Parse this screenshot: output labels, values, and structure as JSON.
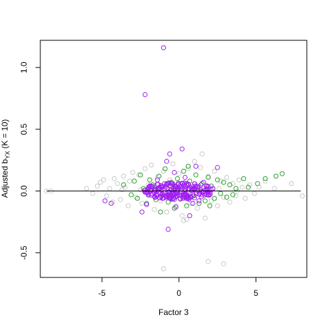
{
  "chart_data": {
    "type": "scatter",
    "title": "",
    "xlabel": "Factor 3",
    "ylabel": {
      "prefix": "Adjusted b",
      "subscript": "YX",
      "suffix": " (K = 10)"
    },
    "xlim": [
      -9.0,
      8.3
    ],
    "ylim": [
      -0.7,
      1.22
    ],
    "x_ticks": [
      -5,
      0,
      5
    ],
    "y_ticks": [
      -0.5,
      0.0,
      0.5,
      1.0
    ],
    "x_tick_labels": [
      "-5",
      "0",
      "5"
    ],
    "y_tick_labels": [
      "-0.5",
      "0.0",
      "0.5",
      "1.0"
    ],
    "reference_line": {
      "intercept": 0,
      "slope": 0,
      "color": "#000000"
    },
    "grid": false,
    "legend": "none",
    "series": [
      {
        "color": "#c8c8c8",
        "points": [
          [
            -8.6,
            0.0
          ],
          [
            -8.3,
            0.0
          ],
          [
            -6.0,
            0.02
          ],
          [
            -5.6,
            -0.02
          ],
          [
            -5.3,
            0.04
          ],
          [
            -5.1,
            0.07
          ],
          [
            -4.9,
            0.09
          ],
          [
            -4.7,
            -0.04
          ],
          [
            -4.5,
            0.02
          ],
          [
            -4.3,
            -0.09
          ],
          [
            -4.2,
            0.1
          ],
          [
            -4.0,
            0.06
          ],
          [
            -3.8,
            -0.07
          ],
          [
            -3.6,
            0.12
          ],
          [
            -3.5,
            0.03
          ],
          [
            -3.3,
            -0.12
          ],
          [
            -3.2,
            0.08
          ],
          [
            -3.0,
            0.15
          ],
          [
            -2.8,
            -0.05
          ],
          [
            -2.6,
            0.13
          ],
          [
            -2.4,
            -0.1
          ],
          [
            -2.2,
            0.18
          ],
          [
            -2.0,
            0.05
          ],
          [
            -1.8,
            0.21
          ],
          [
            -1.6,
            -0.15
          ],
          [
            -1.4,
            0.11
          ],
          [
            -1.2,
            -0.08
          ],
          [
            -1.0,
            0.16
          ],
          [
            -0.8,
            -0.17
          ],
          [
            -0.6,
            0.09
          ],
          [
            -0.4,
            0.22
          ],
          [
            -0.2,
            -0.12
          ],
          [
            0.0,
            0.14
          ],
          [
            0.2,
            -0.2
          ],
          [
            0.3,
            -0.24
          ],
          [
            0.5,
            -0.23
          ],
          [
            0.6,
            0.18
          ],
          [
            0.8,
            -0.1
          ],
          [
            1.0,
            0.24
          ],
          [
            1.2,
            -0.14
          ],
          [
            1.4,
            0.19
          ],
          [
            1.5,
            0.3
          ],
          [
            1.7,
            -0.22
          ],
          [
            1.9,
            0.12
          ],
          [
            2.1,
            -0.08
          ],
          [
            2.3,
            0.16
          ],
          [
            2.5,
            -0.12
          ],
          [
            2.7,
            0.08
          ],
          [
            2.9,
            -0.05
          ],
          [
            3.1,
            0.11
          ],
          [
            3.3,
            -0.09
          ],
          [
            3.5,
            0.06
          ],
          [
            3.7,
            -0.04
          ],
          [
            3.9,
            0.09
          ],
          [
            4.1,
            0.03
          ],
          [
            4.3,
            -0.06
          ],
          [
            4.6,
            0.05
          ],
          [
            4.9,
            -0.02
          ],
          [
            5.2,
            0.03
          ],
          [
            5.6,
            0.08
          ],
          [
            6.2,
            0.02
          ],
          [
            7.3,
            0.06
          ],
          [
            8.0,
            -0.04
          ],
          [
            1.9,
            -0.57
          ],
          [
            2.9,
            -0.59
          ],
          [
            -1.0,
            -0.63
          ],
          [
            -0.5,
            0.04
          ],
          [
            -1.5,
            0.01
          ],
          [
            0.9,
            0.03
          ],
          [
            1.6,
            0.02
          ],
          [
            -2.5,
            0.01
          ],
          [
            2.6,
            0.02
          ],
          [
            -3.7,
            0.01
          ],
          [
            3.8,
            0.0
          ],
          [
            -0.3,
            -0.05
          ],
          [
            0.4,
            0.06
          ]
        ]
      },
      {
        "color": "#2ca02c",
        "points": [
          [
            -3.6,
            0.05
          ],
          [
            -3.1,
            -0.03
          ],
          [
            -2.9,
            0.08
          ],
          [
            -2.7,
            -0.06
          ],
          [
            -2.5,
            0.13
          ],
          [
            -2.3,
            0.02
          ],
          [
            -2.1,
            -0.1
          ],
          [
            -1.9,
            0.09
          ],
          [
            -1.7,
            0.05
          ],
          [
            -1.5,
            -0.07
          ],
          [
            -1.3,
            0.12
          ],
          [
            -1.1,
            -0.03
          ],
          [
            -0.9,
            0.18
          ],
          [
            -0.7,
            -0.09
          ],
          [
            -0.5,
            0.07
          ],
          [
            -0.3,
            -0.14
          ],
          [
            -0.1,
            0.1
          ],
          [
            0.1,
            -0.06
          ],
          [
            0.3,
            0.16
          ],
          [
            0.5,
            -0.12
          ],
          [
            0.7,
            0.08
          ],
          [
            0.9,
            -0.04
          ],
          [
            1.1,
            0.13
          ],
          [
            1.3,
            -0.1
          ],
          [
            1.5,
            0.06
          ],
          [
            1.7,
            -0.08
          ],
          [
            1.9,
            0.11
          ],
          [
            2.1,
            0.04
          ],
          [
            2.3,
            -0.06
          ],
          [
            2.5,
            0.09
          ],
          [
            2.7,
            -0.02
          ],
          [
            2.9,
            0.07
          ],
          [
            3.1,
            -0.05
          ],
          [
            3.3,
            0.05
          ],
          [
            3.5,
            -0.03
          ],
          [
            3.7,
            0.02
          ],
          [
            4.2,
            0.1
          ],
          [
            4.5,
            0.03
          ],
          [
            5.1,
            0.06
          ],
          [
            5.6,
            0.1
          ],
          [
            6.3,
            0.12
          ],
          [
            6.7,
            0.14
          ],
          [
            -1.2,
            -0.17
          ],
          [
            0.6,
            0.2
          ],
          [
            2.0,
            -0.12
          ],
          [
            -2.0,
            0.01
          ],
          [
            1.0,
            0.01
          ],
          [
            -0.4,
            0.03
          ]
        ]
      },
      {
        "color": "#a020f0",
        "points": [
          [
            -1.0,
            1.16
          ],
          [
            -2.2,
            0.78
          ],
          [
            0.2,
            0.34
          ],
          [
            -0.6,
            0.3
          ],
          [
            1.1,
            0.2
          ],
          [
            -0.8,
            0.24
          ],
          [
            2.5,
            0.19
          ],
          [
            -4.8,
            -0.08
          ],
          [
            -4.4,
            -0.1
          ],
          [
            -2.4,
            -0.17
          ],
          [
            -2.1,
            -0.11
          ],
          [
            -1.6,
            -0.04
          ],
          [
            -0.7,
            -0.31
          ],
          [
            0.7,
            -0.2
          ],
          [
            1.3,
            -0.08
          ],
          [
            -0.2,
            -0.13
          ],
          [
            0.9,
            -0.1
          ],
          [
            1.6,
            0.07
          ],
          [
            -1.4,
            0.09
          ],
          [
            0.4,
            0.11
          ],
          [
            -0.3,
            0.15
          ],
          [
            1.9,
            -0.03
          ],
          [
            -1.9,
            0.04
          ],
          [
            2.2,
            0.02
          ]
        ]
      }
    ],
    "dense_cluster": {
      "color": "#a020f0",
      "center": [
        0.0,
        0.0
      ],
      "spread_x": [
        -2.3,
        2.3
      ],
      "spread_y": [
        -0.07,
        0.07
      ],
      "count": 220
    }
  }
}
